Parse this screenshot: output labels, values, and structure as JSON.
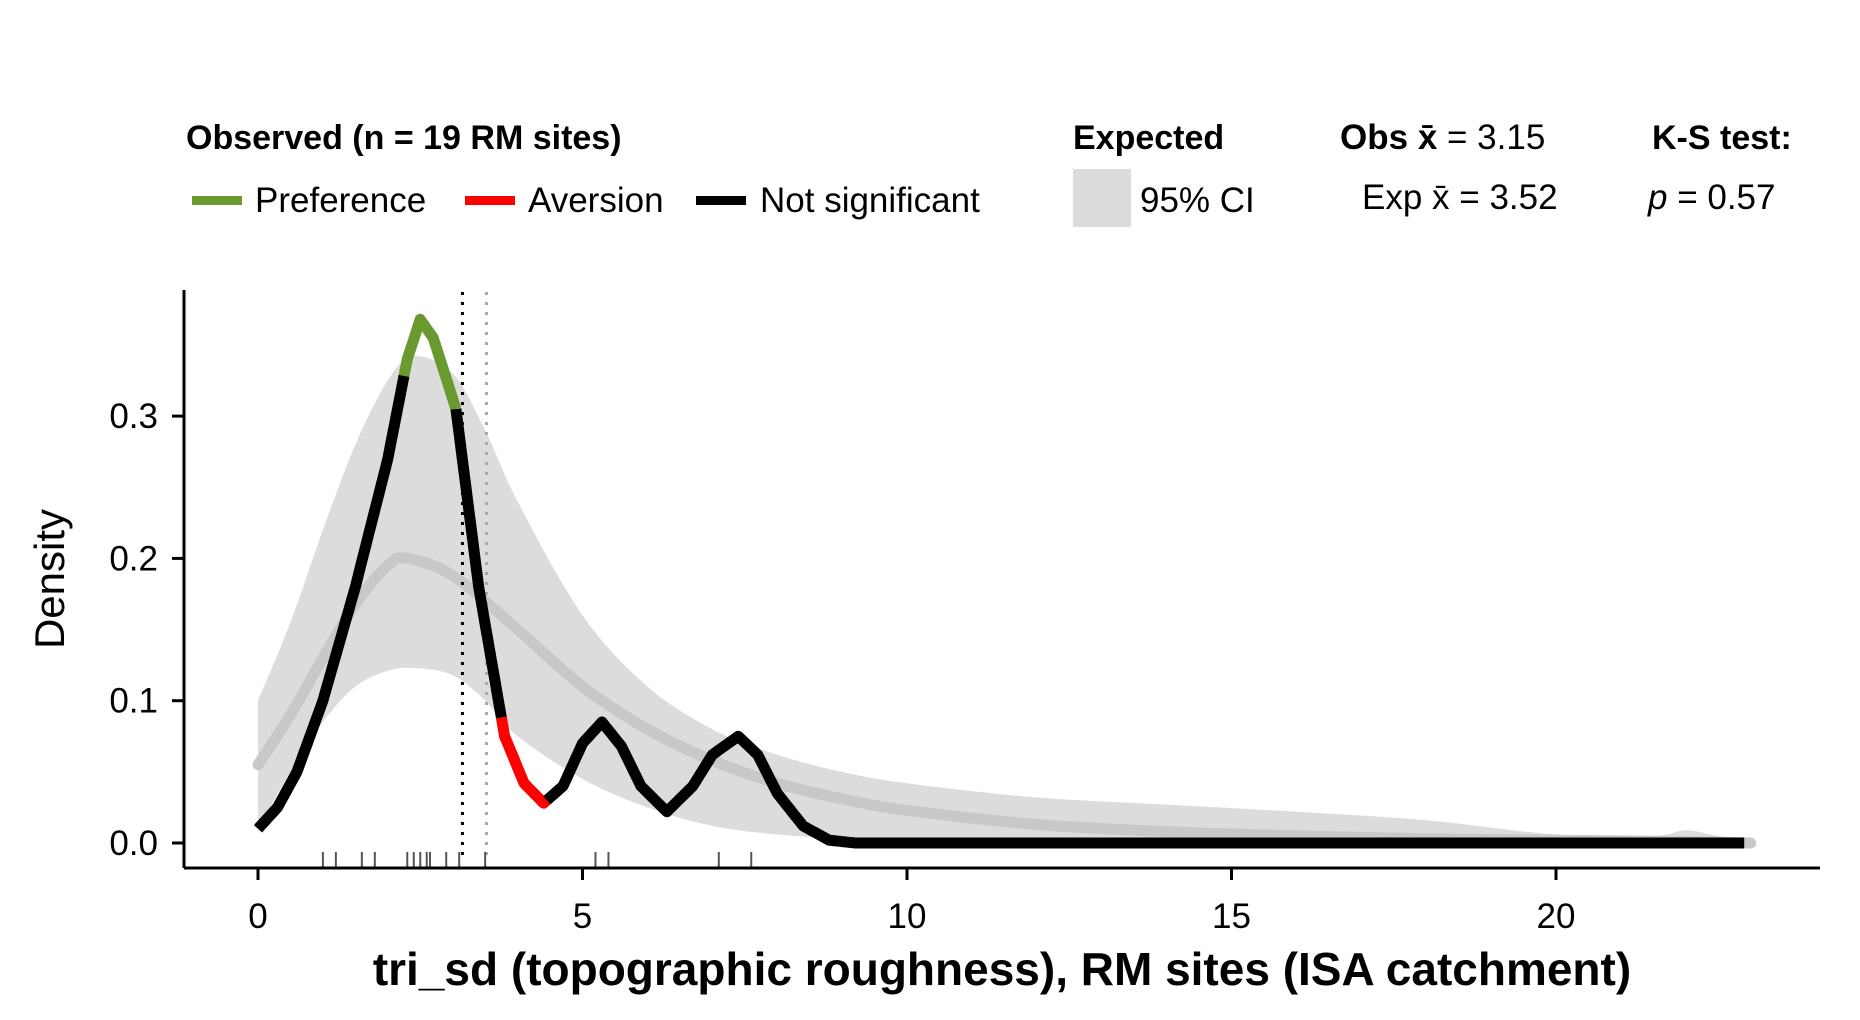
{
  "chart_data": {
    "type": "line",
    "xlabel": "tri_sd (topographic roughness), RM sites (ISA catchment)",
    "ylabel": "Density",
    "xlim": [
      -1.1,
      24
    ],
    "ylim": [
      -0.03,
      0.39
    ],
    "x_ticks": [
      0,
      5,
      10,
      15,
      20
    ],
    "y_ticks": [
      0.0,
      0.1,
      0.2,
      0.3
    ],
    "y_tick_labels": [
      "0.0",
      "0.1",
      "0.2",
      "0.3"
    ],
    "grid": false,
    "legend": {
      "observed_title": "Observed (n = 19 RM sites)",
      "items": [
        {
          "label": "Preference",
          "color": "#6a9a2f"
        },
        {
          "label": "Aversion",
          "color": "#ff0000"
        },
        {
          "label": "Not significant",
          "color": "#000000"
        }
      ],
      "expected_title": "Expected",
      "ci_label": "95% CI",
      "ci_color": "#dcdcdc",
      "obs_mean_prefix": "Obs",
      "obs_mean_symbol": "x̄",
      "obs_mean_value": "= 3.15",
      "exp_mean_prefix": "Exp",
      "exp_mean_symbol": "x̄",
      "exp_mean_value": "= 3.52",
      "ks_title": "K-S test:",
      "ks_p_symbol": "p",
      "ks_p_value": "= 0.57"
    },
    "obs_mean": 3.15,
    "exp_mean": 3.52,
    "ci_band": {
      "x": [
        0,
        0.5,
        1,
        1.5,
        2,
        2.4,
        3,
        3.5,
        4,
        5,
        6,
        7,
        8,
        9,
        10,
        12,
        14,
        16,
        18,
        20,
        21.5,
        22,
        22.5,
        23
      ],
      "upper": [
        0.1,
        0.155,
        0.22,
        0.28,
        0.325,
        0.342,
        0.33,
        0.29,
        0.24,
        0.16,
        0.11,
        0.08,
        0.062,
        0.05,
        0.042,
        0.032,
        0.027,
        0.022,
        0.016,
        0.006,
        0.005,
        0.009,
        0.005,
        0.002
      ],
      "lower": [
        0.01,
        0.05,
        0.085,
        0.11,
        0.121,
        0.123,
        0.118,
        0.1,
        0.075,
        0.045,
        0.025,
        0.012,
        0.006,
        0.003,
        0.001,
        0.0,
        0.0,
        0.0,
        0.0,
        0.0,
        0.0,
        0.0,
        0.0,
        0.0
      ]
    },
    "expected_mean_curve": {
      "x": [
        0,
        0.5,
        1,
        1.5,
        2,
        2.3,
        3,
        4,
        5,
        6,
        7,
        8,
        9,
        10,
        12,
        14,
        16,
        18,
        20,
        22,
        23
      ],
      "y": [
        0.055,
        0.09,
        0.13,
        0.168,
        0.195,
        0.2,
        0.188,
        0.15,
        0.11,
        0.08,
        0.058,
        0.042,
        0.031,
        0.023,
        0.013,
        0.008,
        0.005,
        0.003,
        0.002,
        0.001,
        0.0
      ]
    },
    "observed_curve": {
      "x": [
        0,
        0.3,
        0.6,
        1,
        1.5,
        2,
        2.3,
        2.5,
        2.7,
        3.05,
        3.4,
        3.8,
        4.1,
        4.4,
        4.7,
        5.0,
        5.3,
        5.6,
        5.9,
        6.3,
        6.7,
        7.0,
        7.4,
        7.7,
        8.0,
        8.4,
        8.8,
        9.2,
        10,
        15,
        20,
        22.9
      ],
      "y": [
        0.01,
        0.025,
        0.05,
        0.1,
        0.18,
        0.27,
        0.34,
        0.368,
        0.355,
        0.305,
        0.18,
        0.075,
        0.042,
        0.028,
        0.04,
        0.07,
        0.085,
        0.068,
        0.04,
        0.022,
        0.04,
        0.062,
        0.075,
        0.062,
        0.035,
        0.012,
        0.002,
        0.0,
        0.0,
        0.0,
        0.0,
        0.0
      ],
      "segments": [
        {
          "from": 0,
          "to": 2.25,
          "significance": "Not significant"
        },
        {
          "from": 2.25,
          "to": 3.05,
          "significance": "Preference"
        },
        {
          "from": 3.05,
          "to": 3.75,
          "significance": "Not significant"
        },
        {
          "from": 3.75,
          "to": 4.45,
          "significance": "Aversion"
        },
        {
          "from": 4.45,
          "to": 22.9,
          "significance": "Not significant"
        }
      ]
    },
    "rug_x": [
      1.0,
      1.2,
      1.6,
      1.8,
      2.3,
      2.4,
      2.5,
      2.6,
      2.65,
      2.9,
      3.1,
      3.5,
      5.2,
      5.4,
      7.1,
      7.6
    ]
  }
}
